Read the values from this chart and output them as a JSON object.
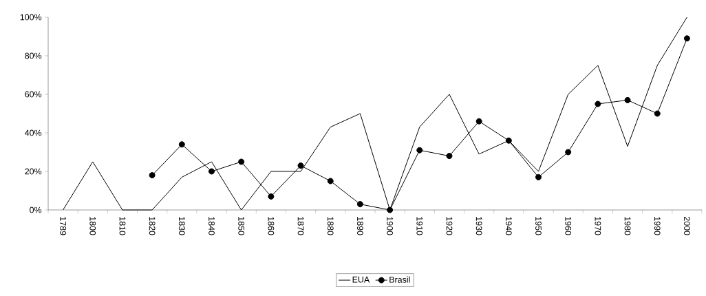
{
  "chart_data": {
    "type": "line",
    "categories": [
      "1789",
      "1800",
      "1810",
      "1820",
      "1830",
      "1840",
      "1850",
      "1860",
      "1870",
      "1880",
      "1890",
      "1900",
      "1910",
      "1920",
      "1930",
      "1940",
      "1950",
      "1960",
      "1970",
      "1980",
      "1990",
      "2000"
    ],
    "series": [
      {
        "name": "EUA",
        "color": "#000000",
        "marker": "none",
        "values": [
          0,
          25,
          0,
          0,
          17,
          25,
          0,
          20,
          20,
          43,
          50,
          0,
          43,
          60,
          29,
          36,
          20,
          60,
          75,
          33,
          75,
          100
        ]
      },
      {
        "name": "Brasil",
        "color": "#000000",
        "marker": "circle",
        "values": [
          null,
          null,
          null,
          18,
          34,
          20,
          25,
          7,
          23,
          15,
          3,
          0,
          31,
          28,
          46,
          36,
          17,
          30,
          55,
          57,
          50,
          89
        ]
      }
    ],
    "ylim": [
      0,
      100
    ],
    "yticks": [
      {
        "value": 0,
        "label": "0%"
      },
      {
        "value": 20,
        "label": "20%"
      },
      {
        "value": 40,
        "label": "40%"
      },
      {
        "value": 60,
        "label": "60%"
      },
      {
        "value": 80,
        "label": "80%"
      },
      {
        "value": 100,
        "label": "100%"
      }
    ],
    "grid": false,
    "legend": "bottom"
  }
}
